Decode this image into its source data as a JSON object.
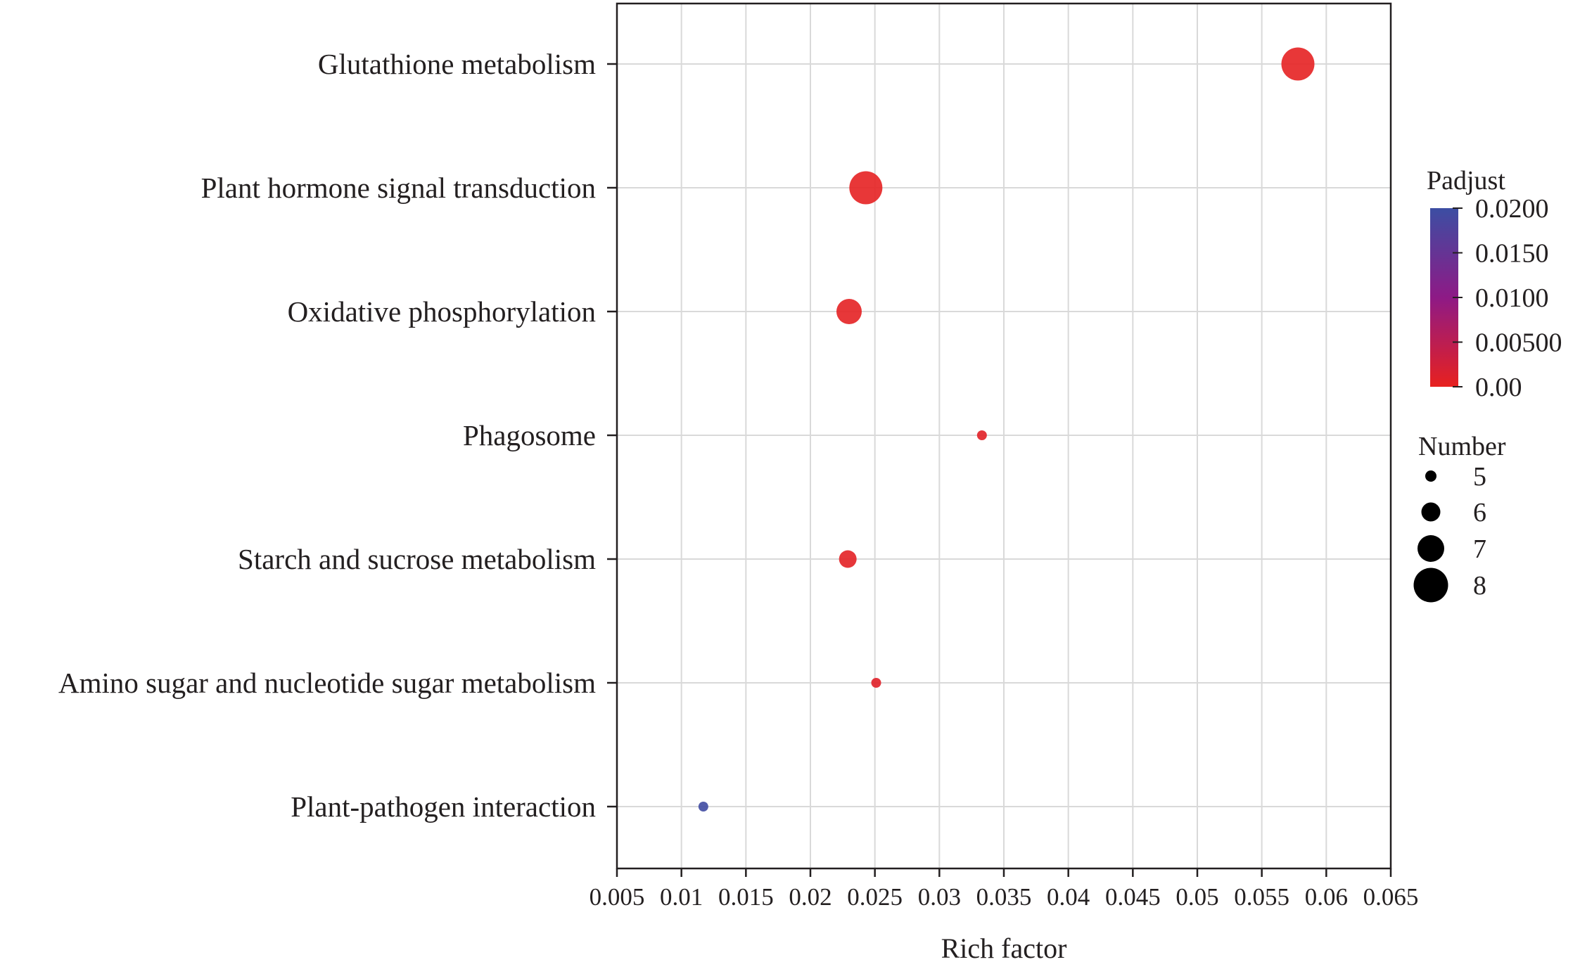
{
  "chart_data": {
    "type": "scatter",
    "xlabel": "Rich factor",
    "ylabel": "",
    "xlim": [
      0.005,
      0.065
    ],
    "xticks": [
      "0.005",
      "0.01",
      "0.015",
      "0.02",
      "0.025",
      "0.03",
      "0.035",
      "0.04",
      "0.045",
      "0.05",
      "0.055",
      "0.06",
      "0.065"
    ],
    "categories": [
      "Glutathione metabolism",
      "Plant hormone signal transduction",
      "Oxidative phosphorylation",
      "Phagosome",
      "Starch and sucrose metabolism",
      "Amino sugar and nucleotide sugar metabolism",
      "Plant-pathogen interaction"
    ],
    "points": [
      {
        "pathway": "Glutathione metabolism",
        "rich_factor": 0.0578,
        "number": 8,
        "padjust": 0.0003
      },
      {
        "pathway": "Plant hormone signal transduction",
        "rich_factor": 0.0243,
        "number": 8,
        "padjust": 0.0003
      },
      {
        "pathway": "Oxidative phosphorylation",
        "rich_factor": 0.023,
        "number": 7,
        "padjust": 0.0004
      },
      {
        "pathway": "Phagosome",
        "rich_factor": 0.0333,
        "number": 5,
        "padjust": 0.0008
      },
      {
        "pathway": "Starch and sucrose metabolism",
        "rich_factor": 0.0229,
        "number": 6,
        "padjust": 0.0006
      },
      {
        "pathway": "Amino sugar and nucleotide sugar metabolism",
        "rich_factor": 0.0251,
        "number": 5,
        "padjust": 0.0009
      },
      {
        "pathway": "Plant-pathogen interaction",
        "rich_factor": 0.0117,
        "number": 5,
        "padjust": 0.0195
      }
    ],
    "color_legend": {
      "title": "Padjust",
      "min": 0.0,
      "max": 0.02,
      "low_color": "#e8211f",
      "mid_color": "#8e1a86",
      "high_color": "#3c4ea3",
      "ticks": [
        {
          "value": 0.02,
          "label": "0.0200"
        },
        {
          "value": 0.015,
          "label": "0.0150"
        },
        {
          "value": 0.01,
          "label": "0.0100"
        },
        {
          "value": 0.005,
          "label": "0.00500"
        },
        {
          "value": 0.0,
          "label": "0.00"
        }
      ]
    },
    "size_legend": {
      "title": "Number",
      "values": [
        5,
        6,
        7,
        8
      ],
      "labels": [
        "5",
        "6",
        "7",
        "8"
      ],
      "color": "#000000"
    },
    "grid": true,
    "legend_position": "right"
  }
}
